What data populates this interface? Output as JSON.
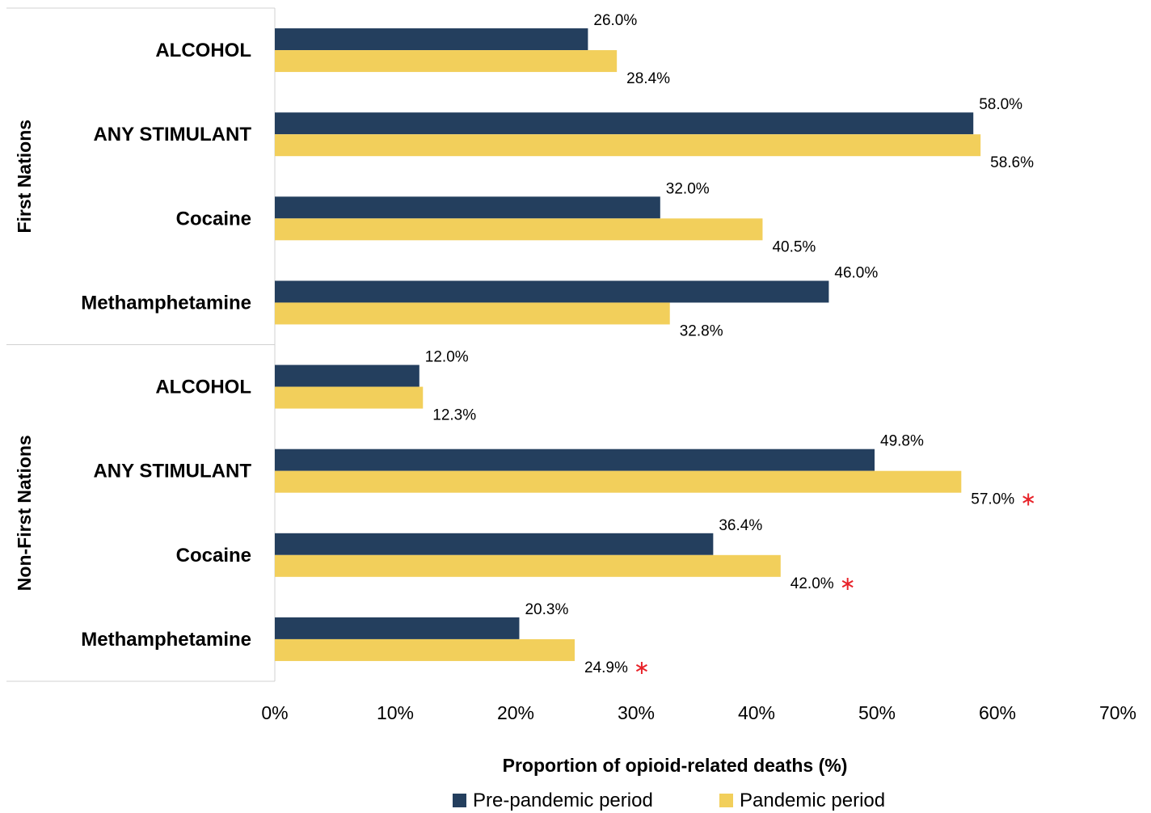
{
  "chart_data": {
    "type": "bar",
    "orientation": "horizontal",
    "xlabel": "Proportion of opioid-related deaths (%)",
    "xlim": [
      0,
      70
    ],
    "x_ticks": [
      "0%",
      "10%",
      "20%",
      "30%",
      "40%",
      "50%",
      "60%",
      "70%"
    ],
    "grid": false,
    "legend_position": "bottom",
    "groups": [
      {
        "label": "First Nations",
        "categories": [
          {
            "label": "ALCOHOL",
            "pre": 26.0,
            "pre_label": "26.0%",
            "pandemic": 28.4,
            "pandemic_label": "28.4%",
            "significant": false
          },
          {
            "label": "ANY STIMULANT",
            "pre": 58.0,
            "pre_label": "58.0%",
            "pandemic": 58.6,
            "pandemic_label": "58.6%",
            "significant": false
          },
          {
            "label": "Cocaine",
            "pre": 32.0,
            "pre_label": "32.0%",
            "pandemic": 40.5,
            "pandemic_label": "40.5%",
            "significant": false
          },
          {
            "label": "Methamphetamine",
            "pre": 46.0,
            "pre_label": "46.0%",
            "pandemic": 32.8,
            "pandemic_label": "32.8%",
            "significant": false
          }
        ]
      },
      {
        "label": "Non-First Nations",
        "categories": [
          {
            "label": "ALCOHOL",
            "pre": 12.0,
            "pre_label": "12.0%",
            "pandemic": 12.3,
            "pandemic_label": "12.3%",
            "significant": false
          },
          {
            "label": "ANY STIMULANT",
            "pre": 49.8,
            "pre_label": "49.8%",
            "pandemic": 57.0,
            "pandemic_label": "57.0%",
            "significant": true
          },
          {
            "label": "Cocaine",
            "pre": 36.4,
            "pre_label": "36.4%",
            "pandemic": 42.0,
            "pandemic_label": "42.0%",
            "significant": true
          },
          {
            "label": "Methamphetamine",
            "pre": 20.3,
            "pre_label": "20.3%",
            "pandemic": 24.9,
            "pandemic_label": "24.9%",
            "significant": true
          }
        ]
      }
    ],
    "series": [
      {
        "key": "pre",
        "name": "Pre-pandemic period",
        "color": "#243F5E"
      },
      {
        "key": "pandemic",
        "name": "Pandemic period",
        "color": "#F2CF5B"
      }
    ],
    "significance_marker": "∗",
    "significance_color": "#E8232A"
  }
}
